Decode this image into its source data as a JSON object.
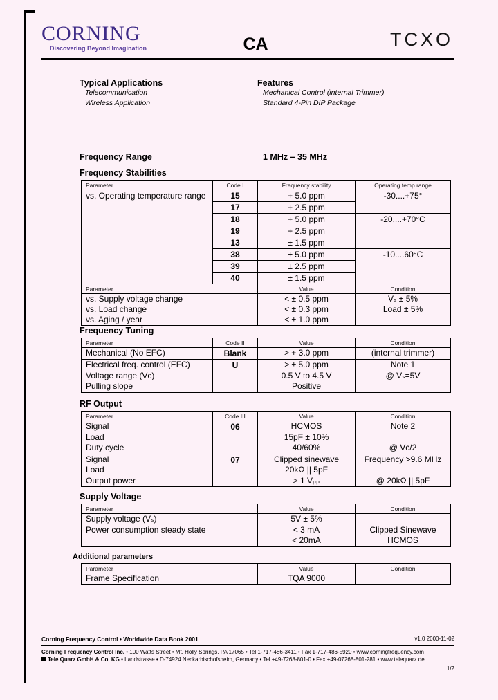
{
  "header": {
    "logo": "CORNING",
    "tagline": "Discovering Beyond Imagination",
    "model": "CA",
    "product": "TCXO",
    "brand_color": "#3e2b87"
  },
  "intro": {
    "applications_title": "Typical Applications",
    "applications": [
      "Telecommunication",
      "Wireless Application"
    ],
    "features_title": "Features",
    "features": [
      "Mechanical Control (internal Trimmer)",
      "Standard 4-Pin DIP Package"
    ]
  },
  "frequency_range": {
    "label": "Frequency Range",
    "value": "1 MHz – 35 MHz"
  },
  "stabilities": {
    "title": "Frequency Stabilities",
    "header_a": [
      "Parameter",
      "Code I",
      "Frequency stability",
      "Operating temp range"
    ],
    "parameter": "vs. Operating temperature range",
    "code_rows": [
      {
        "code": "15",
        "stability": "+ 5.0 ppm",
        "temp": "-30....+75°",
        "temp_span": 2
      },
      {
        "code": "17",
        "stability": "+ 2.5 ppm"
      },
      {
        "code": "18",
        "stability": "+ 5.0 ppm",
        "temp": "-20....+70°C",
        "temp_span": 3
      },
      {
        "code": "19",
        "stability": "+ 2.5 ppm"
      },
      {
        "code": "13",
        "stability": "± 1.5 ppm"
      },
      {
        "code": "38",
        "stability": "± 5.0 ppm",
        "temp": "-10....60°C",
        "temp_span": 3
      },
      {
        "code": "39",
        "stability": "± 2.5 ppm"
      },
      {
        "code": "40",
        "stability": "± 1.5 ppm"
      }
    ],
    "header_b": [
      "Parameter",
      "Value",
      "Condition"
    ],
    "value_rows": [
      {
        "parameter": "vs.  Supply voltage change",
        "value": "< ± 0.5 ppm",
        "condition": "Vₛ ± 5%"
      },
      {
        "parameter": "vs.  Load change",
        "value": "< ± 0.3 ppm",
        "condition": "Load ± 5%"
      },
      {
        "parameter": "vs.  Aging / year",
        "value": "< ± 1.0 ppm",
        "condition": ""
      }
    ]
  },
  "tuning": {
    "title": "Frequency Tuning",
    "header": [
      "Parameter",
      "Code II",
      "Value",
      "Condition"
    ],
    "groups": [
      {
        "params": [
          "Mechanical (No EFC)"
        ],
        "code": "Blank",
        "values": [
          "> + 3.0 ppm"
        ],
        "conditions": [
          "(internal trimmer)"
        ]
      },
      {
        "params": [
          "Electrical freq. control (EFC)",
          "Voltage range (Vc)",
          "Pulling slope"
        ],
        "code": "U",
        "values": [
          "> ± 5.0 ppm",
          "0.5 V to 4.5 V",
          "Positive"
        ],
        "conditions": [
          "Note 1",
          "@ Vₛ=5V",
          ""
        ]
      }
    ]
  },
  "rf_output": {
    "title": "RF Output",
    "header": [
      "Parameter",
      "Code III",
      "Value",
      "Condition"
    ],
    "groups": [
      {
        "params": [
          "Signal",
          "Load",
          "Duty cycle"
        ],
        "code": "06",
        "values": [
          "HCMOS",
          "15pF ± 10%",
          "40/60%"
        ],
        "conditions": [
          "Note 2",
          "",
          "@ Vc/2"
        ]
      },
      {
        "params": [
          "Signal",
          "Load",
          "Output power"
        ],
        "code": "07",
        "values": [
          "Clipped sinewave",
          "20kΩ || 5pF",
          "> 1 Vₚₚ"
        ],
        "conditions": [
          "Frequency >9.6 MHz",
          "",
          "@ 20kΩ || 5pF"
        ]
      }
    ]
  },
  "supply": {
    "title": "Supply Voltage",
    "header": [
      "Parameter",
      "Value",
      "Condition"
    ],
    "groups": [
      {
        "params": [
          "Supply voltage (Vₛ)",
          "Power consumption steady state",
          ""
        ],
        "values": [
          "5V ± 5%",
          "< 3 mA",
          "< 20mA"
        ],
        "conditions": [
          "",
          "Clipped Sinewave",
          "HCMOS"
        ]
      }
    ]
  },
  "additional": {
    "title": "Additional parameters",
    "header": [
      "Parameter",
      "Value",
      "Condition"
    ],
    "groups": [
      {
        "params": [
          "Frame Specification"
        ],
        "values": [
          "TQA 9000"
        ],
        "conditions": [
          ""
        ]
      }
    ]
  },
  "footer": {
    "book": "Corning Frequency Control • Worldwide Data Book 2001",
    "version": "v1.0 2000-11-02",
    "corning_name": "Corning Frequency Control Inc.",
    "corning_rest": " • 100 Watts Street • Mt. Holly Springs, PA 17065 • Tel 1-717-486-3411 • Fax 1-717-486-5920 • www.corningfrequency.com",
    "telequarz_name": "Tele Quarz GmbH & Co. KG",
    "telequarz_rest": " • Landstrasse • D-74924 Neckarbischofsheim, Germany • Tel +49-7268-801-0 • Fax +49-07268-801-281 • www.telequarz.de",
    "page_number": "1/2"
  }
}
